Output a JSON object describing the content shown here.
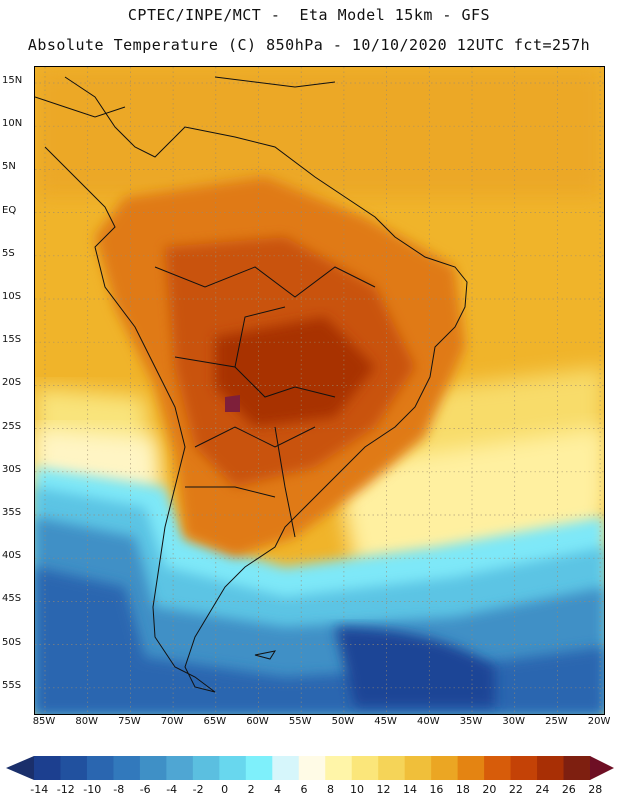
{
  "header": {
    "line1": "CPTEC/INPE/MCT -  Eta Model 15km - GFS",
    "line2": "Absolute Temperature (C) 850hPa - 10/10/2020 12UTC fct=257h"
  },
  "map": {
    "lat_labels": [
      "15N",
      "10N",
      "5N",
      "EQ",
      "5S",
      "10S",
      "15S",
      "20S",
      "25S",
      "30S",
      "35S",
      "40S",
      "45S",
      "50S",
      "55S"
    ],
    "lon_labels": [
      "85W",
      "80W",
      "75W",
      "70W",
      "65W",
      "60W",
      "55W",
      "50W",
      "45W",
      "40W",
      "35W",
      "30W",
      "25W",
      "20W"
    ]
  },
  "colorbar": {
    "labels": [
      "-14",
      "-12",
      "-10",
      "-8",
      "-6",
      "-4",
      "-2",
      "0",
      "2",
      "4",
      "6",
      "8",
      "10",
      "12",
      "14",
      "16",
      "18",
      "20",
      "22",
      "24",
      "26",
      "28"
    ],
    "colors": [
      "#1c3f8f",
      "#21519f",
      "#2a66b0",
      "#3279bc",
      "#3f90c6",
      "#4fa6d3",
      "#5bbfe0",
      "#68d7ee",
      "#7ef0fb",
      "#d6f6fb",
      "#fffbe6",
      "#fff5a8",
      "#fbe67a",
      "#f5d458",
      "#f0bf3a",
      "#eba623",
      "#e48412",
      "#d75c0a",
      "#c44206",
      "#a82f05",
      "#7e1f10"
    ],
    "under_color": "#1a2f6b",
    "over_color": "#6e0f24"
  }
}
